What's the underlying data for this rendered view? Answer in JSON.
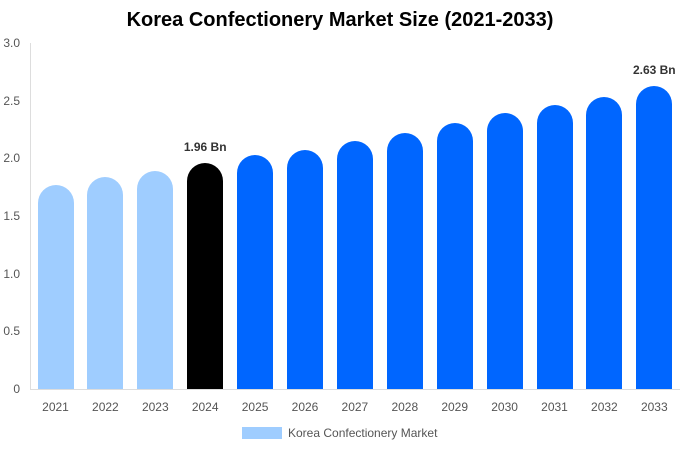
{
  "chart_data": {
    "type": "bar",
    "title": "Korea Confectionery Market Size (2021-2033)",
    "xlabel": "",
    "ylabel": "",
    "ylim": [
      0,
      3.0
    ],
    "yticks": [
      "0",
      "0.5",
      "1.0",
      "1.5",
      "2.0",
      "2.5",
      "3.0"
    ],
    "categories": [
      "2021",
      "2022",
      "2023",
      "2024",
      "2025",
      "2026",
      "2027",
      "2028",
      "2029",
      "2030",
      "2031",
      "2032",
      "2033"
    ],
    "series": [
      {
        "name": "Korea Confectionery Market",
        "values": [
          1.77,
          1.84,
          1.89,
          1.96,
          2.03,
          2.07,
          2.15,
          2.22,
          2.31,
          2.39,
          2.46,
          2.53,
          2.63
        ],
        "colors": [
          "#9fcdff",
          "#9fcdff",
          "#9fcdff",
          "#000000",
          "#0066ff",
          "#0066ff",
          "#0066ff",
          "#0066ff",
          "#0066ff",
          "#0066ff",
          "#0066ff",
          "#0066ff",
          "#0066ff"
        ]
      }
    ],
    "annotations": [
      {
        "category": "2024",
        "label": "1.96 Bn"
      },
      {
        "category": "2033",
        "label": "2.63 Bn"
      }
    ],
    "legend": {
      "position": "bottom",
      "entries": [
        "Korea Confectionery Market"
      ]
    },
    "grid": false
  },
  "legend_swatch_color": "#9fcdff"
}
